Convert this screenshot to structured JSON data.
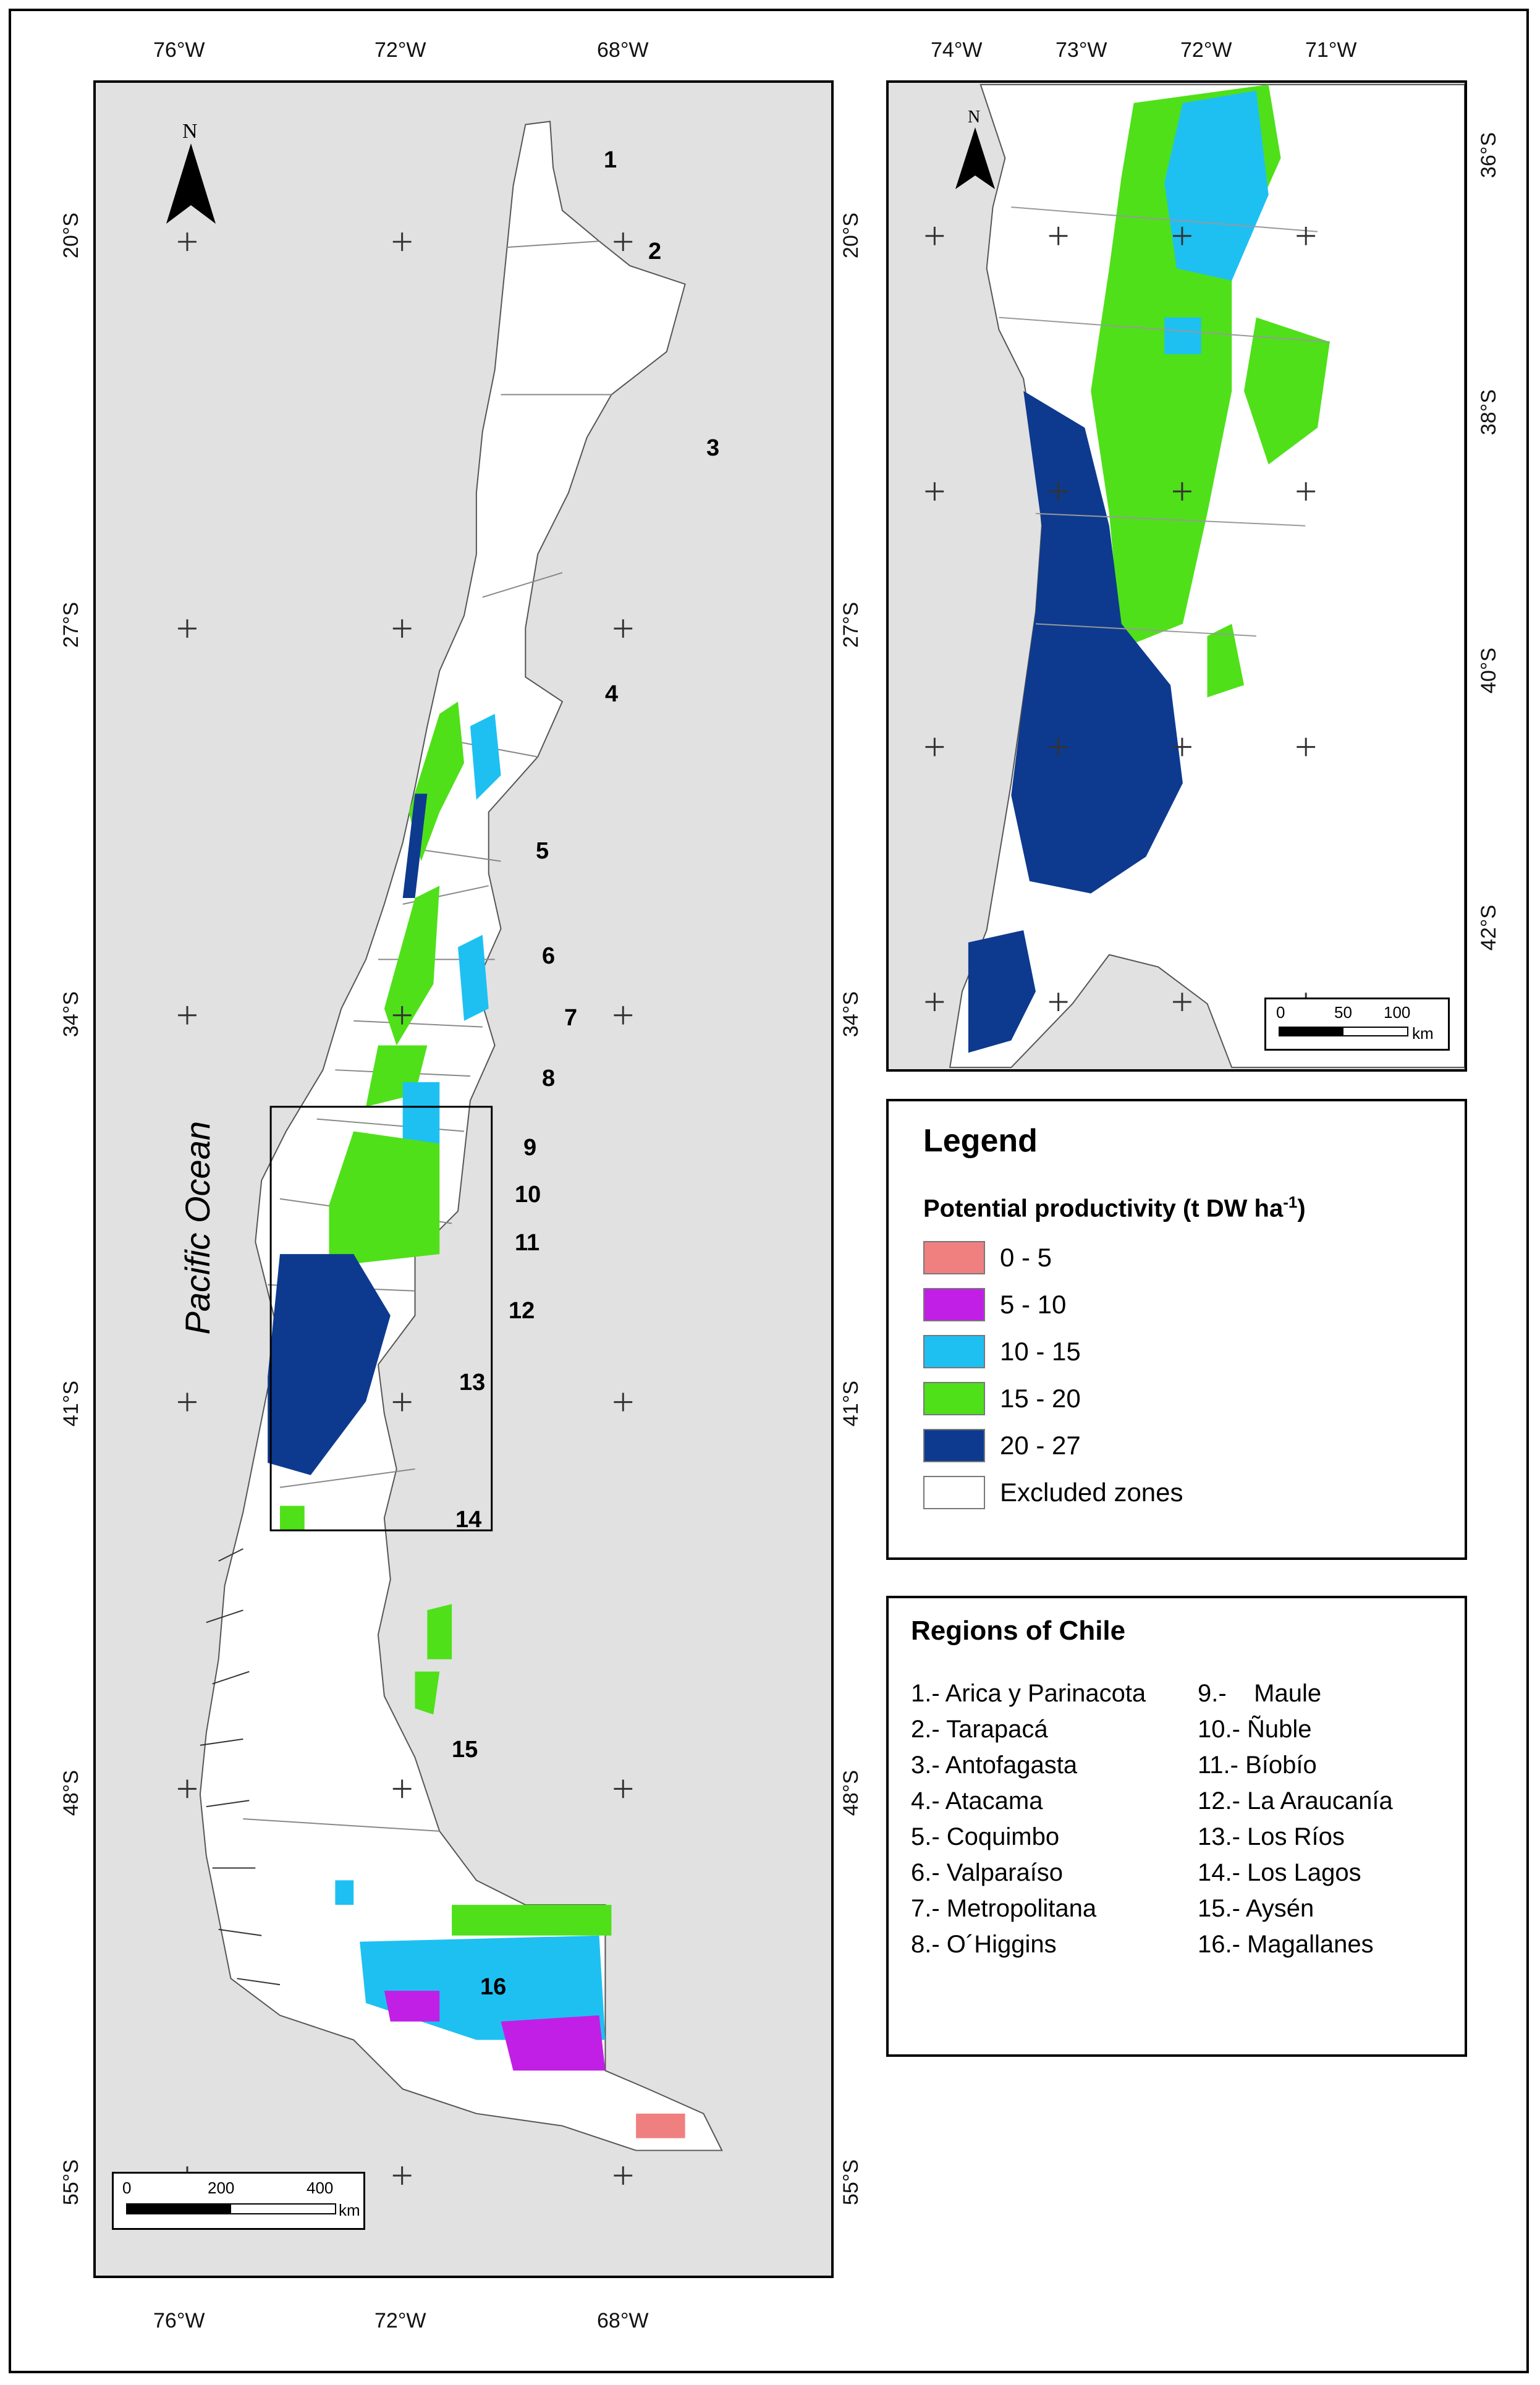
{
  "main_map": {
    "lon_labels": [
      "76°W",
      "72°W",
      "68°W"
    ],
    "lat_labels": [
      "20°S",
      "27°S",
      "34°S",
      "41°S",
      "48°S",
      "55°S"
    ],
    "north_label": "N",
    "ocean_label": "Pacific Ocean",
    "region_numbers": [
      "1",
      "2",
      "3",
      "4",
      "5",
      "6",
      "7",
      "8",
      "9",
      "10",
      "11",
      "12",
      "13",
      "14",
      "15",
      "16"
    ],
    "scalebar": {
      "labels": [
        "0",
        "200",
        "400"
      ],
      "unit": "km"
    }
  },
  "inset_map": {
    "lon_labels": [
      "74°W",
      "73°W",
      "72°W",
      "71°W"
    ],
    "lat_labels": [
      "36°S",
      "38°S",
      "40°S",
      "42°S"
    ],
    "north_label": "N",
    "scalebar": {
      "labels": [
        "0",
        "50",
        "100"
      ],
      "unit": "km"
    }
  },
  "legend": {
    "title": "Legend",
    "subtitle": "Potential productivity (t DW ha",
    "subtitle_sup": "-1",
    "subtitle_end": ")",
    "classes": [
      {
        "label": "0 - 5",
        "color": "#f08080"
      },
      {
        "label": "5 - 10",
        "color": "#c21fe6"
      },
      {
        "label": "10 - 15",
        "color": "#1ec0f2"
      },
      {
        "label": "15 - 20",
        "color": "#4fe01a"
      },
      {
        "label": "20 - 27",
        "color": "#0d3a8f"
      },
      {
        "label": "Excluded zones",
        "color": "#ffffff"
      }
    ]
  },
  "regions": {
    "title": "Regions of Chile",
    "items": [
      "1.- Arica y Parinacota",
      "2.- Tarapacá",
      "3.- Antofagasta",
      "4.- Atacama",
      "5.- Coquimbo",
      "6.- Valparaíso",
      "7.- Metropolitana",
      "8.- O´Higgins",
      "9.-    Maule",
      "10.- Ñuble",
      "11.- Bíobío",
      "12.- La Araucanía",
      "13.- Los Ríos",
      "14.- Los Lagos",
      "15.- Aysén",
      "16.- Magallanes"
    ]
  }
}
